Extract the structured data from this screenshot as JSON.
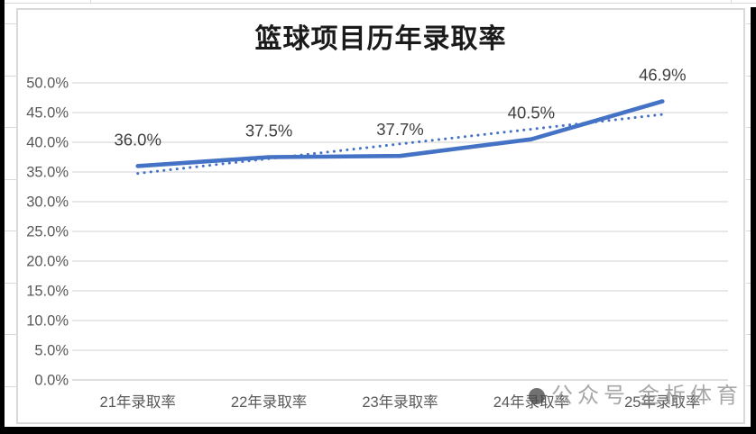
{
  "chart_data": {
    "type": "line",
    "title": "篮球项目历年录取率",
    "categories": [
      "21年录取率",
      "22年录取率",
      "23年录取率",
      "24年录取率",
      "25年录取率"
    ],
    "series": [
      {
        "name": "录取率",
        "values": [
          36.0,
          37.5,
          37.7,
          40.5,
          46.9
        ],
        "style": "solid"
      }
    ],
    "data_labels": [
      "36.0%",
      "37.5%",
      "37.7%",
      "40.5%",
      "46.9%"
    ],
    "trendline": {
      "type": "linear",
      "style": "dotted"
    },
    "y_tick_labels": [
      "0.0%",
      "5.0%",
      "10.0%",
      "15.0%",
      "20.0%",
      "25.0%",
      "30.0%",
      "35.0%",
      "40.0%",
      "45.0%",
      "50.0%"
    ],
    "ylim": [
      0,
      50
    ],
    "y_tick_step": 5,
    "xlabel": "",
    "ylabel": "",
    "grid": true,
    "legend": "none",
    "colors": {
      "line": "#4472C4",
      "gridline": "#D9D9D9",
      "axis_line": "#C9C9C9",
      "tick_text": "#595959",
      "data_label_text": "#404040",
      "title_text": "#1A1A1A"
    }
  },
  "watermark": {
    "icon": "circle-logo",
    "prefix": "公众号",
    "name": "金柝体育"
  }
}
